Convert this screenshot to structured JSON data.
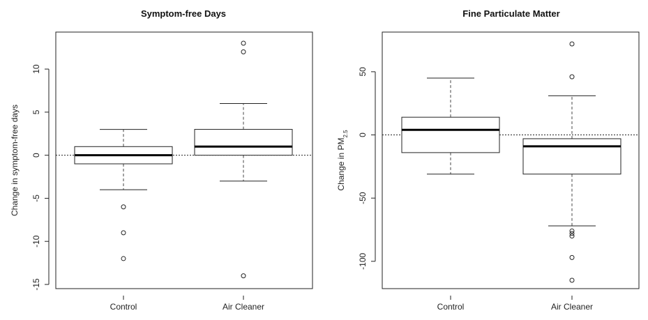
{
  "chart_data": [
    {
      "type": "box",
      "title": "Symptom-free Days",
      "xlabel": "",
      "ylabel": "Change in symptom-free days",
      "ylim": [
        -15,
        13
      ],
      "yticks": [
        -15,
        -10,
        -5,
        0,
        5,
        10
      ],
      "reference_line": 0,
      "categories": [
        "Control",
        "Air Cleaner"
      ],
      "boxes": [
        {
          "category": "Control",
          "lower_whisker": -4,
          "q1": -1,
          "median": 0,
          "q3": 1,
          "upper_whisker": 3,
          "outliers": [
            -6,
            -9,
            -12
          ]
        },
        {
          "category": "Air Cleaner",
          "lower_whisker": -3,
          "q1": 0,
          "median": 1,
          "q3": 3,
          "upper_whisker": 6,
          "outliers": [
            13,
            12,
            -14
          ]
        }
      ]
    },
    {
      "type": "box",
      "title": "Fine Particulate Matter",
      "xlabel": "",
      "ylabel": "Change in PM",
      "ylabel_subscript": "2.5",
      "ylim": [
        -115,
        72
      ],
      "yticks": [
        -100,
        -50,
        0,
        50
      ],
      "reference_line": 0,
      "categories": [
        "Control",
        "Air Cleaner"
      ],
      "boxes": [
        {
          "category": "Control",
          "lower_whisker": -31,
          "q1": -14,
          "median": 4,
          "q3": 14,
          "upper_whisker": 45,
          "outliers": []
        },
        {
          "category": "Air Cleaner",
          "lower_whisker": -72,
          "q1": -31,
          "median": -9,
          "q3": -3,
          "upper_whisker": 31,
          "outliers": [
            72,
            46,
            -76,
            -78,
            -80,
            -97,
            -115
          ]
        }
      ]
    }
  ]
}
